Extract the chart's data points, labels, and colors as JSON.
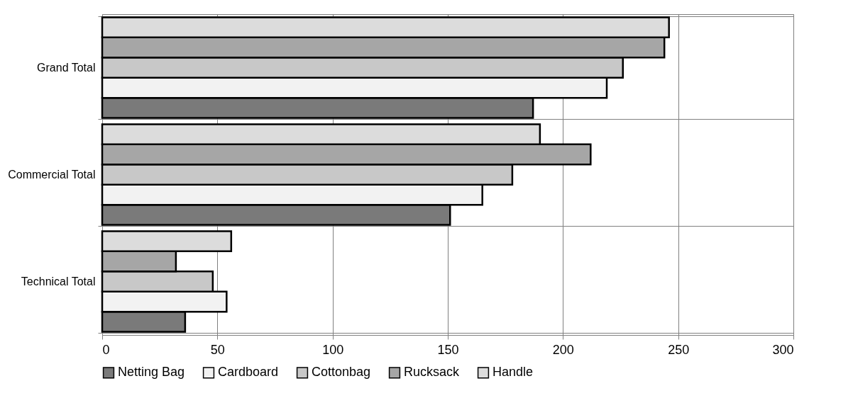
{
  "chart_data": {
    "type": "bar",
    "orientation": "horizontal",
    "categories": [
      "Grand Total",
      "Commercial Total",
      "Technical Total"
    ],
    "series": [
      {
        "name": "Netting Bag",
        "color": "#7a7a7a",
        "values": [
          187,
          151,
          36
        ]
      },
      {
        "name": "Cardboard",
        "color": "#f2f2f2",
        "values": [
          219,
          165,
          54
        ]
      },
      {
        "name": "Cottonbag",
        "color": "#c8c8c8",
        "values": [
          226,
          178,
          48
        ]
      },
      {
        "name": "Rucksack",
        "color": "#a6a6a6",
        "values": [
          244,
          212,
          32
        ]
      },
      {
        "name": "Handle",
        "color": "#dcdcdc",
        "values": [
          246,
          190,
          56
        ]
      }
    ],
    "xlim": [
      0,
      300
    ],
    "xticks": [
      0,
      50,
      100,
      150,
      200,
      250,
      300
    ],
    "grid": true,
    "legend": "bottom"
  }
}
